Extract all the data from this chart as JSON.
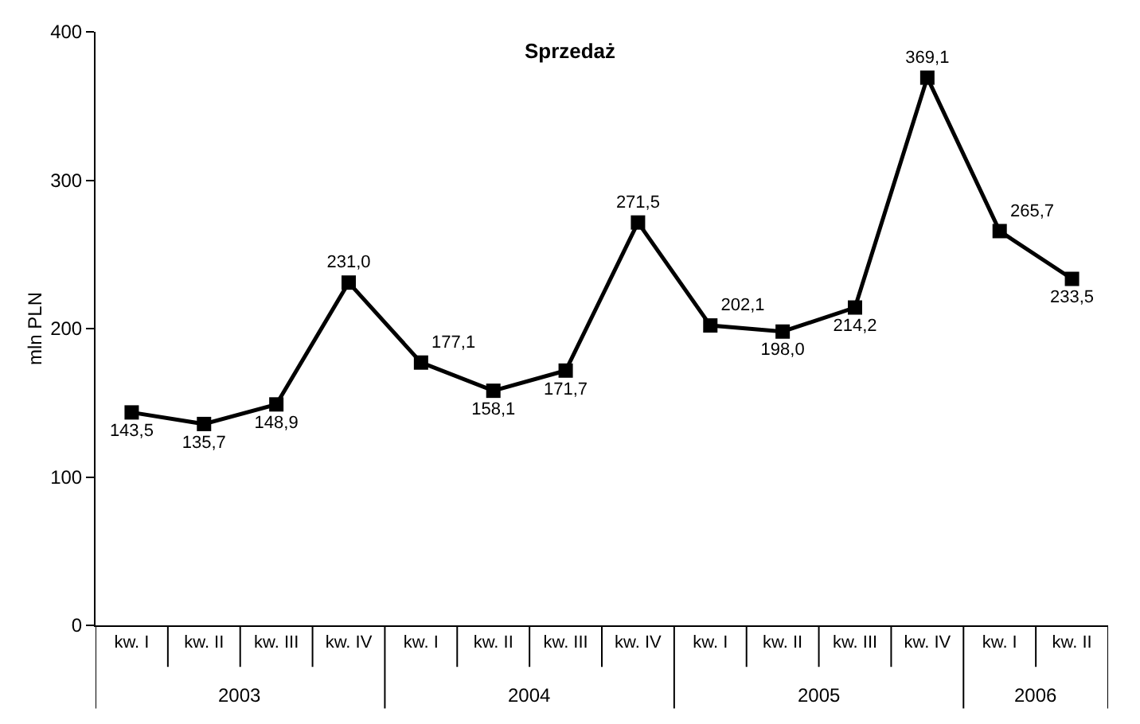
{
  "chart_data": {
    "type": "line",
    "title": "Sprzedaż",
    "ylabel": "mln PLN",
    "categories": [
      "kw. I",
      "kw. II",
      "kw. III",
      "kw. IV",
      "kw. I",
      "kw. II",
      "kw. III",
      "kw. IV",
      "kw. I",
      "kw. II",
      "kw. III",
      "kw. IV",
      "kw. I",
      "kw. II"
    ],
    "series": [
      {
        "color": "#000000",
        "values": [
          143.5,
          135.7,
          148.9,
          231.0,
          177.1,
          158.1,
          171.7,
          271.5,
          202.1,
          198.0,
          214.2,
          369.1,
          265.7,
          233.5
        ],
        "value_labels": [
          "143,5",
          "135,7",
          "148,9",
          "231,0",
          "177,1",
          "158,1",
          "171,7",
          "271,5",
          "202,1",
          "198,0",
          "214,2",
          "369,1",
          "265,7",
          "233,5"
        ]
      }
    ],
    "annotations": [
      "2003",
      "2004",
      "2005",
      "2006"
    ],
    "ylim": [
      0,
      400
    ],
    "yticks": [
      0,
      100,
      200,
      300,
      400
    ],
    "grid": false,
    "legend": false,
    "marker": "square",
    "line_style": "solid"
  }
}
